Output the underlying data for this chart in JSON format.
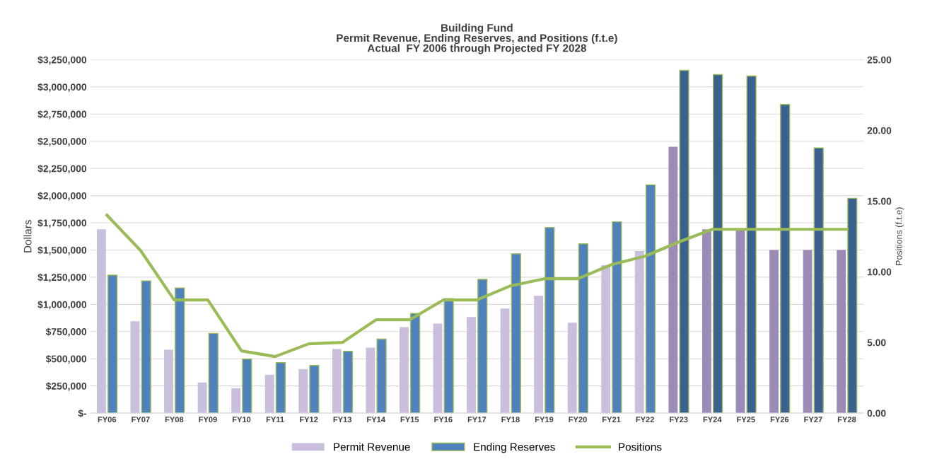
{
  "chart_data": {
    "type": "bar",
    "title": "Building Fund\nPermit Revenue, Ending Reserves, and Positions (f.t.e)\nActual  FY 2006 through Projected FY 2028",
    "ylabel": "Dollars",
    "y2label": "Positions (f.t.e)",
    "categories": [
      "FY06",
      "FY07",
      "FY08",
      "FY09",
      "FY10",
      "FY11",
      "FY12",
      "FY13",
      "FY14",
      "FY15",
      "FY16",
      "FY17",
      "FY18",
      "FY19",
      "FY20",
      "FY21",
      "FY22",
      "FY23",
      "FY24",
      "FY25",
      "FY26",
      "FY27",
      "FY28"
    ],
    "series": [
      {
        "name": "Permit Revenue",
        "color": "#c9bedb",
        "colors": [
          "#c9bedb",
          "#c9bedb",
          "#c9bedb",
          "#c9bedb",
          "#c9bedb",
          "#c9bedb",
          "#c9bedb",
          "#c9bedb",
          "#c9bedb",
          "#c9bedb",
          "#c9bedb",
          "#c9bedb",
          "#c9bedb",
          "#c9bedb",
          "#c9bedb",
          "#c9bedb",
          "#c9bedb",
          "#9d8bb7",
          "#9d8bb7",
          "#9d8bb7",
          "#9d8bb7",
          "#9d8bb7",
          "#9d8bb7"
        ],
        "values": [
          1690000,
          844000,
          582000,
          281000,
          229000,
          353000,
          405000,
          589000,
          602000,
          791000,
          824000,
          883000,
          961000,
          1079000,
          831000,
          1360000,
          1490000,
          2450000,
          1690000,
          1690000,
          1500000,
          1500000,
          1500000
        ]
      },
      {
        "name": "Ending Reserves",
        "color": "#4f81bd",
        "colors": [
          "#4f81bd",
          "#4f81bd",
          "#4f81bd",
          "#4f81bd",
          "#4f81bd",
          "#4f81bd",
          "#4f81bd",
          "#4f81bd",
          "#4f81bd",
          "#4f81bd",
          "#4f81bd",
          "#4f81bd",
          "#4f81bd",
          "#4f81bd",
          "#4f81bd",
          "#4f81bd",
          "#4f81bd",
          "#3b6190",
          "#3b6190",
          "#3b6190",
          "#3b6190",
          "#3b6190",
          "#3b6190"
        ],
        "values": [
          1269000,
          1216000,
          1151000,
          733000,
          497000,
          464000,
          438000,
          569000,
          680000,
          916000,
          1053000,
          1230000,
          1465000,
          1707000,
          1557000,
          1759000,
          2099000,
          3152000,
          3113000,
          3100000,
          2838000,
          2439000,
          1975000
        ]
      },
      {
        "name": "Positions",
        "type": "line",
        "axis": "y2",
        "color": "#9bbb59",
        "values": [
          14.0,
          11.5,
          8.0,
          8.0,
          4.4,
          4.0,
          4.9,
          5.0,
          6.6,
          6.6,
          8.0,
          8.0,
          9.0,
          9.5,
          9.5,
          10.5,
          11.1,
          12.1,
          13.0,
          13.0,
          13.0,
          13.0,
          13.0
        ]
      }
    ],
    "ylim": [
      0,
      3250000
    ],
    "yticks": [
      {
        "value": 0,
        "label": "$-"
      },
      {
        "value": 250000,
        "label": "$250,000"
      },
      {
        "value": 500000,
        "label": "$500,000"
      },
      {
        "value": 750000,
        "label": "$750,000"
      },
      {
        "value": 1000000,
        "label": "$1,000,000"
      },
      {
        "value": 1250000,
        "label": "$1,250,000"
      },
      {
        "value": 1500000,
        "label": "$1,500,000"
      },
      {
        "value": 1750000,
        "label": "$1,750,000"
      },
      {
        "value": 2000000,
        "label": "$2,000,000"
      },
      {
        "value": 2250000,
        "label": "$2,250,000"
      },
      {
        "value": 2500000,
        "label": "$2,500,000"
      },
      {
        "value": 2750000,
        "label": "$2,750,000"
      },
      {
        "value": 3000000,
        "label": "$3,000,000"
      },
      {
        "value": 3250000,
        "label": "$3,250,000"
      }
    ],
    "y2lim": [
      0,
      25
    ],
    "y2ticks": [
      {
        "value": 0,
        "label": "0.00"
      },
      {
        "value": 5,
        "label": "5.00"
      },
      {
        "value": 10,
        "label": "10.00"
      },
      {
        "value": 15,
        "label": "15.00"
      },
      {
        "value": 20,
        "label": "20.00"
      },
      {
        "value": 25,
        "label": "25.00"
      }
    ],
    "grid": "y",
    "legend": "bottom",
    "marker": "none",
    "line_style": "solid"
  }
}
